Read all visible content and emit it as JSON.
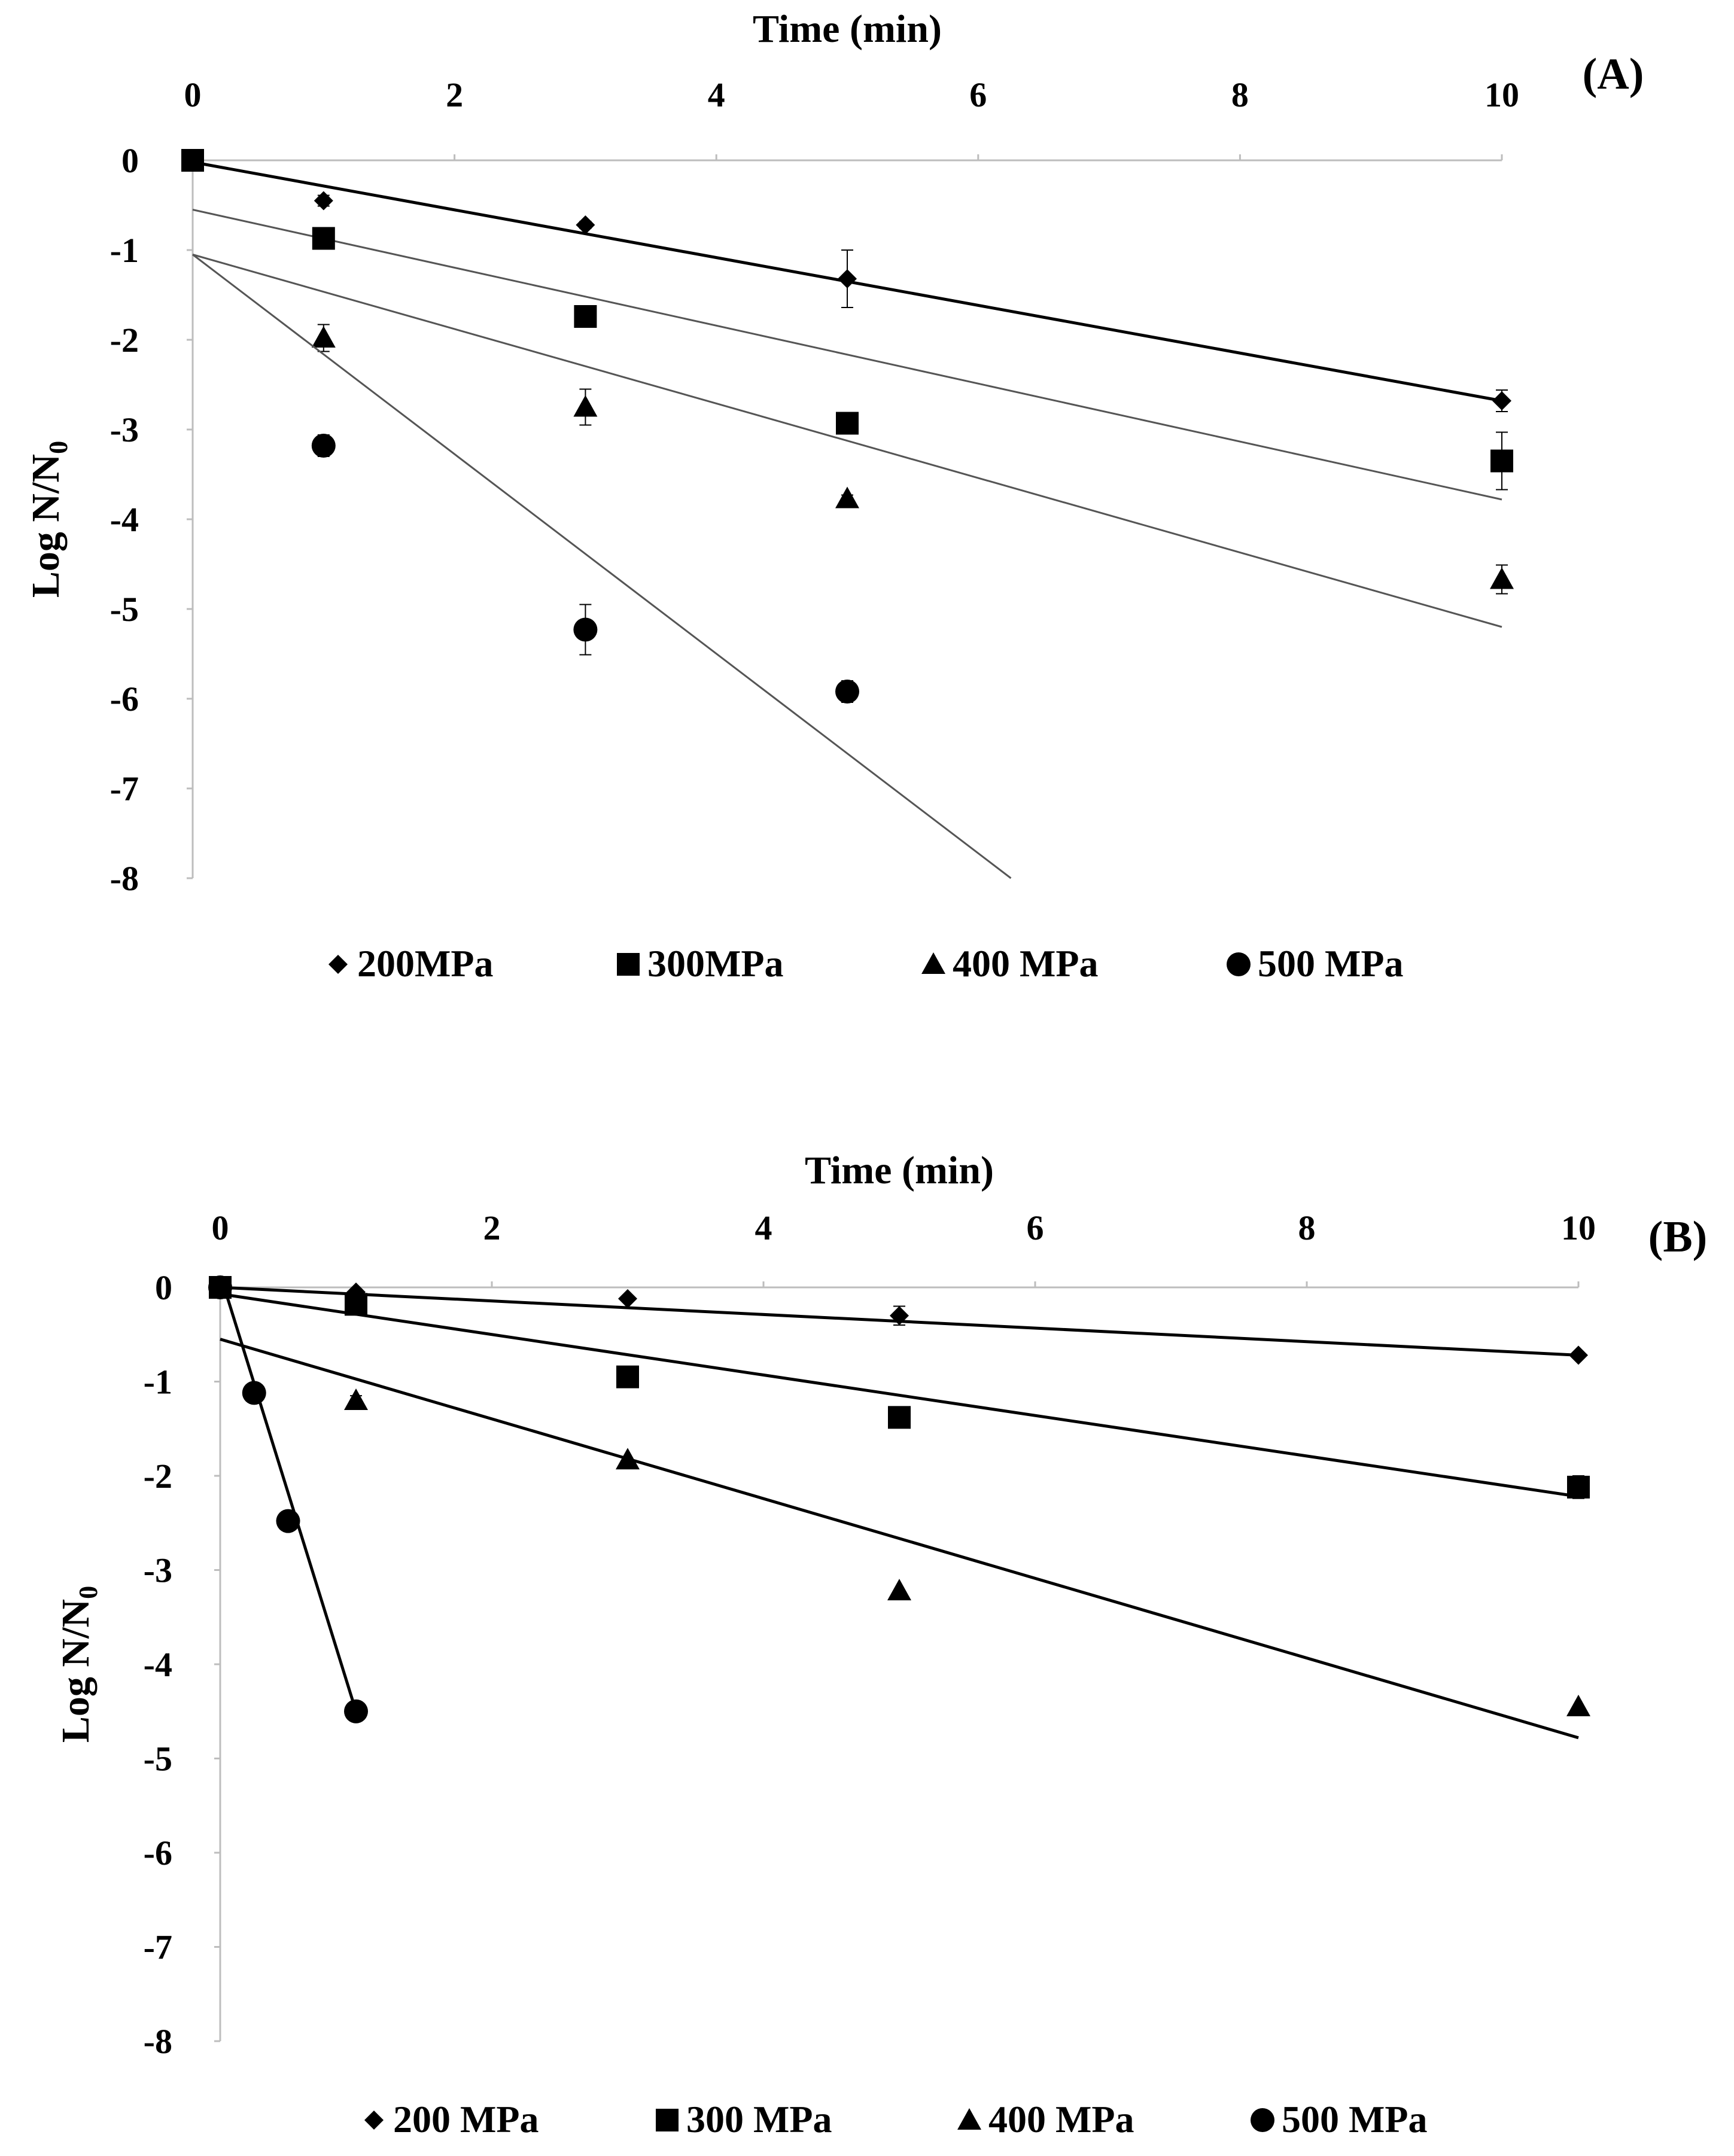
{
  "chart_data": [
    {
      "type": "scatter",
      "panel_label": "(A)",
      "title": "",
      "xlabel": "Time (min)",
      "ylabel_main": "Log N/N",
      "ylabel_sub": "0",
      "xlim": [
        0,
        10
      ],
      "ylim": [
        -8,
        0
      ],
      "x_ticks": [
        "0",
        "2",
        "4",
        "6",
        "8",
        "10"
      ],
      "y_ticks": [
        "0",
        "-1",
        "-2",
        "-3",
        "-4",
        "-5",
        "-6",
        "-7",
        "-8"
      ],
      "legend_position": "bottom",
      "series": [
        {
          "name": "200MPa",
          "marker": "diamond",
          "points": [
            [
              0,
              0
            ],
            [
              1,
              -0.45
            ],
            [
              3,
              -0.72
            ],
            [
              5,
              -1.32
            ],
            [
              10,
              -2.68
            ]
          ],
          "errors": [
            0,
            0.06,
            0.04,
            0.32,
            0.12
          ],
          "fit": {
            "x": [
              0,
              10
            ],
            "y": [
              -0.02,
              -2.68
            ]
          }
        },
        {
          "name": "300MPa",
          "marker": "square",
          "points": [
            [
              0,
              0
            ],
            [
              1,
              -0.87
            ],
            [
              3,
              -1.74
            ],
            [
              5,
              -2.93
            ],
            [
              10,
              -3.35
            ]
          ],
          "errors": [
            0,
            0.06,
            0.06,
            0.06,
            0.32
          ],
          "fit": {
            "x": [
              0,
              10
            ],
            "y": [
              -0.55,
              -3.78
            ]
          }
        },
        {
          "name": "400 MPa",
          "marker": "triangle",
          "points": [
            [
              1,
              -1.98
            ],
            [
              3,
              -2.75
            ],
            [
              5,
              -3.77
            ],
            [
              10,
              -4.67
            ]
          ],
          "errors": [
            0.15,
            0.2,
            0.04,
            0.16
          ],
          "fit": {
            "x": [
              0,
              10
            ],
            "y": [
              -1.05,
              -5.2
            ]
          }
        },
        {
          "name": "500 MPa",
          "marker": "circle",
          "points": [
            [
              1,
              -3.18
            ],
            [
              3,
              -5.23
            ],
            [
              5,
              -5.92
            ]
          ],
          "errors": [
            0.12,
            0.28,
            0.12
          ],
          "fit": {
            "x": [
              0,
              6.25
            ],
            "y": [
              -1.05,
              -8.0
            ]
          }
        }
      ]
    },
    {
      "type": "scatter",
      "panel_label": "(B)",
      "title": "",
      "xlabel": "Time (min)",
      "ylabel_main": "Log N/N",
      "ylabel_sub": "0",
      "xlim": [
        0,
        10
      ],
      "ylim": [
        -8,
        0
      ],
      "x_ticks": [
        "0",
        "2",
        "4",
        "6",
        "8",
        "10"
      ],
      "y_ticks": [
        "0",
        "-1",
        "-2",
        "-3",
        "-4",
        "-5",
        "-6",
        "-7",
        "-8"
      ],
      "legend_position": "bottom",
      "series": [
        {
          "name": "200 MPa",
          "marker": "diamond",
          "points": [
            [
              0,
              0
            ],
            [
              1,
              -0.05
            ],
            [
              3,
              -0.12
            ],
            [
              5,
              -0.3
            ],
            [
              10,
              -0.72
            ]
          ],
          "errors": [
            0,
            0,
            0,
            0.1,
            0
          ],
          "fit": {
            "x": [
              0,
              10
            ],
            "y": [
              0.0,
              -0.72
            ]
          }
        },
        {
          "name": "300 MPa",
          "marker": "square",
          "points": [
            [
              0,
              0
            ],
            [
              1,
              -0.18
            ],
            [
              3,
              -0.95
            ],
            [
              5,
              -1.38
            ],
            [
              10,
              -2.12
            ]
          ],
          "errors": [
            0,
            0,
            0,
            0,
            0.12
          ],
          "fit": {
            "x": [
              0,
              10
            ],
            "y": [
              -0.07,
              -2.22
            ]
          }
        },
        {
          "name": "400 MPa",
          "marker": "triangle",
          "points": [
            [
              1,
              -1.2
            ],
            [
              3,
              -1.83
            ],
            [
              5,
              -3.22
            ],
            [
              10,
              -4.45
            ]
          ],
          "errors": [
            0.05,
            0,
            0,
            0
          ],
          "fit": {
            "x": [
              0,
              10
            ],
            "y": [
              -0.55,
              -4.78
            ]
          }
        },
        {
          "name": "500 MPa",
          "marker": "circle",
          "points": [
            [
              0,
              0
            ],
            [
              0.25,
              -1.12
            ],
            [
              0.5,
              -2.48
            ],
            [
              1,
              -4.5
            ]
          ],
          "errors": [
            0,
            0,
            0,
            0
          ],
          "fit": {
            "x": [
              0.03,
              1.0
            ],
            "y": [
              0.0,
              -4.5
            ]
          }
        }
      ]
    }
  ]
}
